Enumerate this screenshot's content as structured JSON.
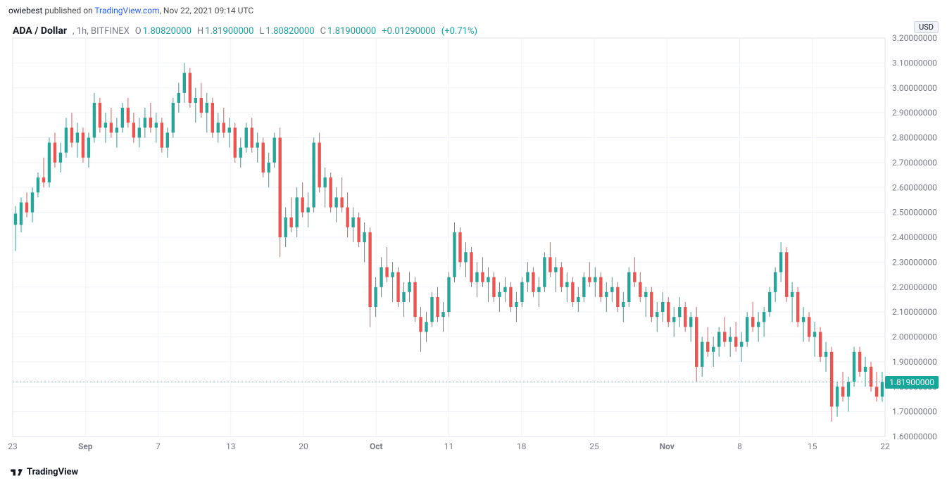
{
  "header": {
    "author": "owiebest",
    "published_on_prefix": " published on ",
    "source": "TradingView.com",
    "timestamp": ", Nov 22, 2021 09:14 UTC"
  },
  "symbol": {
    "pair": "ADA / Dollar",
    "interval": "1h",
    "exchange": "BITFINEX"
  },
  "ohlc": {
    "O": "1.80820000",
    "H": "1.81900000",
    "L": "1.80820000",
    "C": "1.81900000",
    "change": "+0.01290000",
    "change_pct": "(+0.71%)"
  },
  "currency_badge": "USD",
  "price_flag": "1.81900000",
  "footer_brand": "TradingView",
  "chart": {
    "type": "candlestick",
    "background_color": "#ffffff",
    "grid_color": "#f0f3fa",
    "axis_text_color": "#787b86",
    "axis_font_size": 12,
    "up_color": "#26a69a",
    "down_color": "#ef5350",
    "up_border": "#26a69a",
    "down_border": "#ef5350",
    "wick_color_up": "#26a69a",
    "wick_color_down": "#ef5350",
    "last_price_line_color": "#7bb7b2",
    "ylim": [
      1.6,
      3.2
    ],
    "ytick_step": 0.1,
    "ytick_decimals": 8,
    "x_labels": [
      "23",
      "Sep",
      "7",
      "13",
      "20",
      "Oct",
      "11",
      "18",
      "25",
      "Nov",
      "8",
      "15",
      "22"
    ],
    "x_major_indices": [
      1,
      5,
      9
    ],
    "candles": [
      [
        2.495,
        2.525,
        2.345,
        2.45,
        "u"
      ],
      [
        2.45,
        2.56,
        2.42,
        2.54,
        "u"
      ],
      [
        2.54,
        2.58,
        2.48,
        2.5,
        "d"
      ],
      [
        2.5,
        2.6,
        2.46,
        2.58,
        "u"
      ],
      [
        2.58,
        2.66,
        2.56,
        2.64,
        "u"
      ],
      [
        2.64,
        2.72,
        2.6,
        2.62,
        "d"
      ],
      [
        2.62,
        2.8,
        2.6,
        2.78,
        "u"
      ],
      [
        2.78,
        2.82,
        2.68,
        2.7,
        "d"
      ],
      [
        2.7,
        2.78,
        2.66,
        2.74,
        "u"
      ],
      [
        2.74,
        2.88,
        2.72,
        2.84,
        "u"
      ],
      [
        2.84,
        2.9,
        2.76,
        2.78,
        "d"
      ],
      [
        2.78,
        2.86,
        2.72,
        2.82,
        "u"
      ],
      [
        2.82,
        2.84,
        2.7,
        2.72,
        "d"
      ],
      [
        2.72,
        2.82,
        2.68,
        2.8,
        "u"
      ],
      [
        2.8,
        2.98,
        2.78,
        2.94,
        "u"
      ],
      [
        2.94,
        2.96,
        2.82,
        2.84,
        "d"
      ],
      [
        2.84,
        2.9,
        2.78,
        2.86,
        "u"
      ],
      [
        2.86,
        2.92,
        2.8,
        2.82,
        "d"
      ],
      [
        2.82,
        2.88,
        2.76,
        2.84,
        "u"
      ],
      [
        2.84,
        2.94,
        2.82,
        2.92,
        "u"
      ],
      [
        2.92,
        2.96,
        2.84,
        2.86,
        "d"
      ],
      [
        2.86,
        2.9,
        2.78,
        2.8,
        "d"
      ],
      [
        2.8,
        2.88,
        2.76,
        2.84,
        "u"
      ],
      [
        2.84,
        2.92,
        2.8,
        2.88,
        "u"
      ],
      [
        2.88,
        2.94,
        2.82,
        2.84,
        "d"
      ],
      [
        2.84,
        2.9,
        2.78,
        2.86,
        "u"
      ],
      [
        2.86,
        2.88,
        2.74,
        2.76,
        "d"
      ],
      [
        2.76,
        2.84,
        2.72,
        2.82,
        "u"
      ],
      [
        2.82,
        2.96,
        2.8,
        2.94,
        "u"
      ],
      [
        2.94,
        3.02,
        2.9,
        2.98,
        "u"
      ],
      [
        2.98,
        3.1,
        2.94,
        3.06,
        "u"
      ],
      [
        3.06,
        3.08,
        2.92,
        2.94,
        "d"
      ],
      [
        2.94,
        3.0,
        2.86,
        2.96,
        "u"
      ],
      [
        2.96,
        3.02,
        2.88,
        2.9,
        "d"
      ],
      [
        2.9,
        2.98,
        2.82,
        2.94,
        "u"
      ],
      [
        2.94,
        2.96,
        2.8,
        2.82,
        "d"
      ],
      [
        2.82,
        2.9,
        2.78,
        2.86,
        "u"
      ],
      [
        2.86,
        2.92,
        2.8,
        2.82,
        "d"
      ],
      [
        2.82,
        2.88,
        2.76,
        2.84,
        "u"
      ],
      [
        2.84,
        2.86,
        2.7,
        2.72,
        "d"
      ],
      [
        2.72,
        2.8,
        2.68,
        2.76,
        "u"
      ],
      [
        2.76,
        2.86,
        2.74,
        2.84,
        "u"
      ],
      [
        2.84,
        2.88,
        2.74,
        2.76,
        "d"
      ],
      [
        2.76,
        2.82,
        2.7,
        2.78,
        "u"
      ],
      [
        2.78,
        2.8,
        2.64,
        2.66,
        "d"
      ],
      [
        2.66,
        2.74,
        2.6,
        2.7,
        "u"
      ],
      [
        2.7,
        2.82,
        2.68,
        2.8,
        "u"
      ],
      [
        2.8,
        2.84,
        2.32,
        2.4,
        "d"
      ],
      [
        2.4,
        2.52,
        2.36,
        2.48,
        "u"
      ],
      [
        2.48,
        2.56,
        2.42,
        2.44,
        "d"
      ],
      [
        2.44,
        2.6,
        2.4,
        2.56,
        "u"
      ],
      [
        2.56,
        2.62,
        2.48,
        2.5,
        "d"
      ],
      [
        2.5,
        2.58,
        2.44,
        2.52,
        "u"
      ],
      [
        2.52,
        2.8,
        2.5,
        2.78,
        "u"
      ],
      [
        2.78,
        2.82,
        2.58,
        2.6,
        "d"
      ],
      [
        2.6,
        2.68,
        2.52,
        2.64,
        "u"
      ],
      [
        2.64,
        2.66,
        2.5,
        2.52,
        "d"
      ],
      [
        2.52,
        2.6,
        2.46,
        2.56,
        "u"
      ],
      [
        2.56,
        2.64,
        2.5,
        2.52,
        "d"
      ],
      [
        2.52,
        2.58,
        2.4,
        2.44,
        "d"
      ],
      [
        2.44,
        2.52,
        2.38,
        2.48,
        "u"
      ],
      [
        2.48,
        2.5,
        2.36,
        2.38,
        "d"
      ],
      [
        2.38,
        2.46,
        2.3,
        2.42,
        "u"
      ],
      [
        2.42,
        2.44,
        2.04,
        2.12,
        "d"
      ],
      [
        2.12,
        2.24,
        2.08,
        2.2,
        "u"
      ],
      [
        2.2,
        2.32,
        2.16,
        2.28,
        "u"
      ],
      [
        2.28,
        2.36,
        2.22,
        2.24,
        "d"
      ],
      [
        2.24,
        2.3,
        2.14,
        2.26,
        "u"
      ],
      [
        2.26,
        2.28,
        2.12,
        2.14,
        "d"
      ],
      [
        2.14,
        2.22,
        2.08,
        2.18,
        "u"
      ],
      [
        2.18,
        2.26,
        2.14,
        2.22,
        "u"
      ],
      [
        2.22,
        2.24,
        2.06,
        2.08,
        "d"
      ],
      [
        2.08,
        2.12,
        1.94,
        2.02,
        "d"
      ],
      [
        2.02,
        2.1,
        1.98,
        2.06,
        "u"
      ],
      [
        2.06,
        2.18,
        2.04,
        2.16,
        "u"
      ],
      [
        2.16,
        2.2,
        2.06,
        2.08,
        "d"
      ],
      [
        2.08,
        2.14,
        2.02,
        2.1,
        "u"
      ],
      [
        2.1,
        2.26,
        2.08,
        2.24,
        "u"
      ],
      [
        2.24,
        2.46,
        2.22,
        2.42,
        "u"
      ],
      [
        2.42,
        2.44,
        2.28,
        2.3,
        "d"
      ],
      [
        2.3,
        2.38,
        2.24,
        2.34,
        "u"
      ],
      [
        2.34,
        2.36,
        2.2,
        2.22,
        "d"
      ],
      [
        2.22,
        2.3,
        2.16,
        2.26,
        "u"
      ],
      [
        2.26,
        2.32,
        2.2,
        2.22,
        "d"
      ],
      [
        2.22,
        2.28,
        2.14,
        2.24,
        "u"
      ],
      [
        2.24,
        2.26,
        2.14,
        2.16,
        "d"
      ],
      [
        2.16,
        2.22,
        2.1,
        2.18,
        "u"
      ],
      [
        2.18,
        2.24,
        2.14,
        2.2,
        "u"
      ],
      [
        2.2,
        2.22,
        2.1,
        2.12,
        "d"
      ],
      [
        2.12,
        2.18,
        2.06,
        2.14,
        "u"
      ],
      [
        2.14,
        2.24,
        2.12,
        2.22,
        "u"
      ],
      [
        2.22,
        2.3,
        2.18,
        2.26,
        "u"
      ],
      [
        2.26,
        2.28,
        2.16,
        2.18,
        "d"
      ],
      [
        2.18,
        2.24,
        2.12,
        2.2,
        "u"
      ],
      [
        2.2,
        2.34,
        2.18,
        2.32,
        "u"
      ],
      [
        2.32,
        2.38,
        2.24,
        2.26,
        "d"
      ],
      [
        2.26,
        2.32,
        2.18,
        2.28,
        "u"
      ],
      [
        2.28,
        2.3,
        2.18,
        2.2,
        "d"
      ],
      [
        2.2,
        2.26,
        2.14,
        2.22,
        "u"
      ],
      [
        2.22,
        2.24,
        2.12,
        2.14,
        "d"
      ],
      [
        2.14,
        2.2,
        2.1,
        2.16,
        "u"
      ],
      [
        2.16,
        2.26,
        2.14,
        2.24,
        "u"
      ],
      [
        2.24,
        2.3,
        2.2,
        2.22,
        "d"
      ],
      [
        2.22,
        2.28,
        2.16,
        2.24,
        "u"
      ],
      [
        2.24,
        2.26,
        2.14,
        2.16,
        "d"
      ],
      [
        2.16,
        2.22,
        2.1,
        2.18,
        "u"
      ],
      [
        2.18,
        2.24,
        2.14,
        2.2,
        "u"
      ],
      [
        2.2,
        2.22,
        2.1,
        2.12,
        "d"
      ],
      [
        2.12,
        2.18,
        2.06,
        2.14,
        "u"
      ],
      [
        2.14,
        2.28,
        2.12,
        2.26,
        "u"
      ],
      [
        2.26,
        2.32,
        2.2,
        2.22,
        "d"
      ],
      [
        2.22,
        2.26,
        2.14,
        2.16,
        "d"
      ],
      [
        2.16,
        2.2,
        2.08,
        2.18,
        "u"
      ],
      [
        2.18,
        2.2,
        2.06,
        2.08,
        "d"
      ],
      [
        2.08,
        2.14,
        2.02,
        2.1,
        "u"
      ],
      [
        2.1,
        2.18,
        2.06,
        2.14,
        "u"
      ],
      [
        2.14,
        2.16,
        2.04,
        2.06,
        "d"
      ],
      [
        2.06,
        2.12,
        2.0,
        2.08,
        "u"
      ],
      [
        2.08,
        2.16,
        2.04,
        2.12,
        "u"
      ],
      [
        2.12,
        2.14,
        2.02,
        2.04,
        "d"
      ],
      [
        2.04,
        2.1,
        1.98,
        2.08,
        "u"
      ],
      [
        2.08,
        2.12,
        1.82,
        1.88,
        "d"
      ],
      [
        1.88,
        2.0,
        1.84,
        1.98,
        "u"
      ],
      [
        1.98,
        2.04,
        1.92,
        1.94,
        "d"
      ],
      [
        1.94,
        2.0,
        1.88,
        1.96,
        "u"
      ],
      [
        1.96,
        2.04,
        1.92,
        2.02,
        "u"
      ],
      [
        2.02,
        2.08,
        1.96,
        1.98,
        "d"
      ],
      [
        1.98,
        2.04,
        1.92,
        2.0,
        "u"
      ],
      [
        2.0,
        2.06,
        1.94,
        1.96,
        "d"
      ],
      [
        1.96,
        2.02,
        1.9,
        1.98,
        "u"
      ],
      [
        1.98,
        2.1,
        1.96,
        2.08,
        "u"
      ],
      [
        2.08,
        2.14,
        2.02,
        2.04,
        "d"
      ],
      [
        2.04,
        2.1,
        1.98,
        2.06,
        "u"
      ],
      [
        2.06,
        2.12,
        2.0,
        2.1,
        "u"
      ],
      [
        2.1,
        2.2,
        2.08,
        2.18,
        "u"
      ],
      [
        2.18,
        2.28,
        2.14,
        2.26,
        "u"
      ],
      [
        2.26,
        2.38,
        2.22,
        2.34,
        "u"
      ],
      [
        2.34,
        2.36,
        2.14,
        2.16,
        "d"
      ],
      [
        2.16,
        2.22,
        2.06,
        2.18,
        "u"
      ],
      [
        2.18,
        2.2,
        2.04,
        2.06,
        "d"
      ],
      [
        2.06,
        2.12,
        1.98,
        2.08,
        "u"
      ],
      [
        2.08,
        2.1,
        1.98,
        2.0,
        "d"
      ],
      [
        2.0,
        2.06,
        1.92,
        2.02,
        "u"
      ],
      [
        2.02,
        2.04,
        1.9,
        1.92,
        "d"
      ],
      [
        1.92,
        1.98,
        1.86,
        1.94,
        "u"
      ],
      [
        1.94,
        1.96,
        1.66,
        1.72,
        "d"
      ],
      [
        1.72,
        1.82,
        1.68,
        1.8,
        "u"
      ],
      [
        1.8,
        1.86,
        1.74,
        1.76,
        "d"
      ],
      [
        1.76,
        1.84,
        1.7,
        1.82,
        "u"
      ],
      [
        1.82,
        1.96,
        1.8,
        1.94,
        "u"
      ],
      [
        1.94,
        1.96,
        1.84,
        1.86,
        "d"
      ],
      [
        1.86,
        1.92,
        1.8,
        1.88,
        "u"
      ],
      [
        1.88,
        1.9,
        1.78,
        1.8,
        "d"
      ],
      [
        1.8,
        1.86,
        1.74,
        1.76,
        "d"
      ],
      [
        1.76,
        1.86,
        1.74,
        1.819,
        "u"
      ]
    ]
  }
}
